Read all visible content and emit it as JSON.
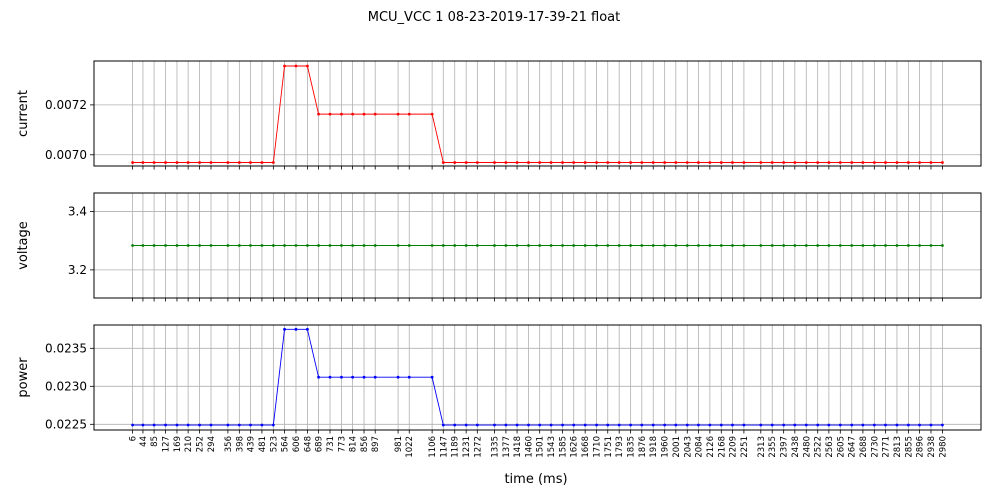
{
  "figure": {
    "title": "MCU_VCC   1   08-23-2019-17-39-21   float",
    "xlabel": "time (ms)"
  },
  "chart_data": {
    "type": "line",
    "x": [
      6,
      44,
      85,
      127,
      169,
      210,
      252,
      294,
      356,
      398,
      439,
      481,
      523,
      564,
      606,
      648,
      689,
      731,
      773,
      814,
      856,
      897,
      981,
      1022,
      1106,
      1147,
      1189,
      1231,
      1272,
      1335,
      1377,
      1418,
      1460,
      1501,
      1543,
      1585,
      1626,
      1668,
      1710,
      1751,
      1793,
      1835,
      1876,
      1918,
      1960,
      2001,
      2043,
      2084,
      2126,
      2168,
      2209,
      2251,
      2313,
      2355,
      2397,
      2438,
      2480,
      2522,
      2563,
      2605,
      2647,
      2688,
      2730,
      2771,
      2813,
      2855,
      2896,
      2938,
      2980
    ],
    "panels": [
      {
        "ylabel": "current",
        "color": "#ff0000",
        "ylim": [
          0.006955,
          0.007376
        ],
        "yticks": [
          0.007,
          0.0072
        ],
        "ytick_labels": [
          "0.0070",
          "0.0072"
        ],
        "values": [
          0.006969,
          0.006969,
          0.006969,
          0.006969,
          0.006969,
          0.006969,
          0.006969,
          0.006969,
          0.006969,
          0.006969,
          0.006969,
          0.006969,
          0.006969,
          0.007356,
          0.007356,
          0.007356,
          0.007163,
          0.007163,
          0.007163,
          0.007163,
          0.007163,
          0.007163,
          0.007163,
          0.007163,
          0.007163,
          0.006969,
          0.006969,
          0.006969,
          0.006969,
          0.006969,
          0.006969,
          0.006969,
          0.006969,
          0.006969,
          0.006969,
          0.006969,
          0.006969,
          0.006969,
          0.006969,
          0.006969,
          0.006969,
          0.006969,
          0.006969,
          0.006969,
          0.006969,
          0.006969,
          0.006969,
          0.006969,
          0.006969,
          0.006969,
          0.006969,
          0.006969,
          0.006969,
          0.006969,
          0.006969,
          0.006969,
          0.006969,
          0.006969,
          0.006969,
          0.006969,
          0.006969,
          0.006969,
          0.006969,
          0.006969,
          0.006969,
          0.006969,
          0.006969,
          0.006969,
          0.006969
        ]
      },
      {
        "ylabel": "voltage",
        "color": "#008000",
        "ylim": [
          3.1036,
          3.4636
        ],
        "yticks": [
          3.2,
          3.4
        ],
        "ytick_labels": [
          "3.2",
          "3.4"
        ],
        "values": [
          3.2836,
          3.2836,
          3.2836,
          3.2836,
          3.2836,
          3.2836,
          3.2836,
          3.2836,
          3.2836,
          3.2836,
          3.2836,
          3.2836,
          3.2836,
          3.2836,
          3.2836,
          3.2836,
          3.2836,
          3.2836,
          3.2836,
          3.2836,
          3.2836,
          3.2836,
          3.2836,
          3.2836,
          3.2836,
          3.2836,
          3.2836,
          3.2836,
          3.2836,
          3.2836,
          3.2836,
          3.2836,
          3.2836,
          3.2836,
          3.2836,
          3.2836,
          3.2836,
          3.2836,
          3.2836,
          3.2836,
          3.2836,
          3.2836,
          3.2836,
          3.2836,
          3.2836,
          3.2836,
          3.2836,
          3.2836,
          3.2836,
          3.2836,
          3.2836,
          3.2836,
          3.2836,
          3.2836,
          3.2836,
          3.2836,
          3.2836,
          3.2836,
          3.2836,
          3.2836,
          3.2836,
          3.2836,
          3.2836,
          3.2836,
          3.2836,
          3.2836,
          3.2836,
          3.2836,
          3.2836
        ]
      },
      {
        "ylabel": "power",
        "color": "#0000ff",
        "ylim": [
          0.022425,
          0.023807
        ],
        "yticks": [
          0.0225,
          0.023,
          0.0235
        ],
        "ytick_labels": [
          "0.0225",
          "0.0230",
          "0.0235"
        ],
        "values": [
          0.02249,
          0.02249,
          0.02249,
          0.02249,
          0.02249,
          0.02249,
          0.02249,
          0.02249,
          0.02249,
          0.02249,
          0.02249,
          0.02249,
          0.02249,
          0.02375,
          0.02375,
          0.02375,
          0.02312,
          0.02312,
          0.02312,
          0.02312,
          0.02312,
          0.02312,
          0.02312,
          0.02312,
          0.02312,
          0.02249,
          0.02249,
          0.02249,
          0.02249,
          0.02249,
          0.02249,
          0.02249,
          0.02249,
          0.02249,
          0.02249,
          0.02249,
          0.02249,
          0.02249,
          0.02249,
          0.02249,
          0.02249,
          0.02249,
          0.02249,
          0.02249,
          0.02249,
          0.02249,
          0.02249,
          0.02249,
          0.02249,
          0.02249,
          0.02249,
          0.02249,
          0.02249,
          0.02249,
          0.02249,
          0.02249,
          0.02249,
          0.02249,
          0.02249,
          0.02249,
          0.02249,
          0.02249,
          0.02249,
          0.02249,
          0.02249,
          0.02249,
          0.02249,
          0.02249,
          0.02249
        ]
      }
    ],
    "grid": true,
    "xlim": [
      -135.7,
      3121.7
    ]
  }
}
